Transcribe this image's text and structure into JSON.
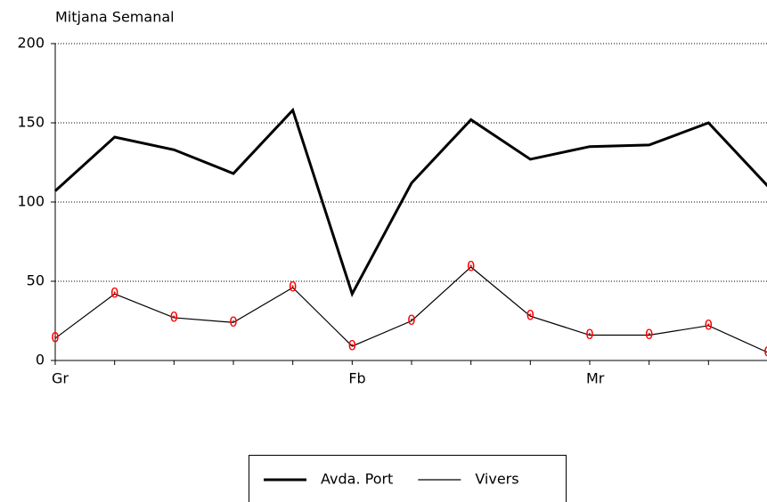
{
  "chart_data": {
    "type": "line",
    "title": "Mitjana Semanal",
    "categories": [
      "Gr",
      null,
      null,
      null,
      null,
      "Fb",
      null,
      null,
      null,
      "Mr",
      null,
      null,
      null
    ],
    "series": [
      {
        "name": "Avda. Port",
        "color": "#000000",
        "line_width": 3,
        "values": [
          107,
          141,
          133,
          118,
          158,
          42,
          112,
          152,
          127,
          135,
          136,
          150,
          110
        ]
      },
      {
        "name": "Vivers",
        "color": "#000000",
        "line_width": 1.2,
        "marker_symbol": "0",
        "marker_color": "#ff0000",
        "values": [
          14,
          42,
          27,
          24,
          46,
          9,
          25,
          59,
          28,
          16,
          16,
          22,
          5
        ]
      }
    ],
    "ylim": [
      0,
      200
    ],
    "yticks": [
      0,
      50,
      100,
      150,
      200
    ],
    "grid": true,
    "legend": "bottom"
  }
}
